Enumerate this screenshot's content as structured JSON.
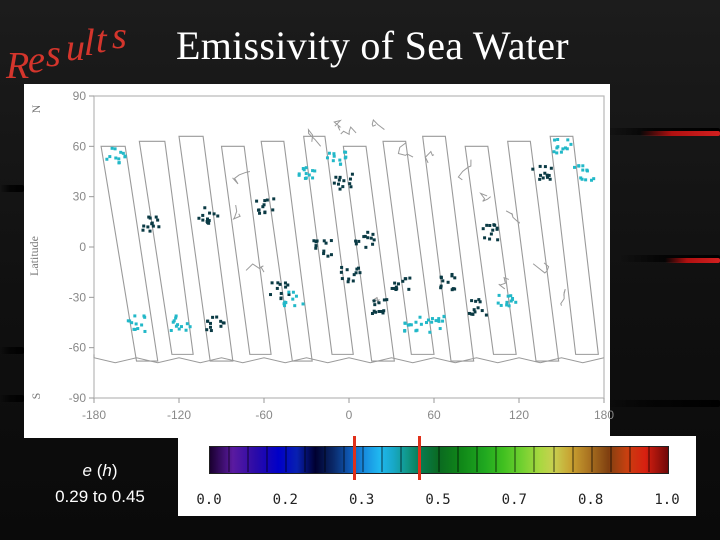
{
  "slide": {
    "section_word": "Results",
    "title": "Emissivity of Sea Water"
  },
  "map": {
    "y_axis_label": "Latitude",
    "north_label": "N",
    "south_label": "S",
    "lat_ticks": [
      "90",
      "60",
      "30",
      "0",
      "-30",
      "-60",
      "-90"
    ],
    "lon_ticks": [
      "-180",
      "-120",
      "-60",
      "0",
      "60",
      "120",
      "180"
    ],
    "colors": {
      "swath_outline": "#9a9a9a",
      "dark_teal": "#0a3a44",
      "cyan": "#22b8c8"
    }
  },
  "caption": {
    "symbol": "e",
    "open_paren": " (",
    "variable": "h",
    "close_paren": ")",
    "range": "0.29 to 0.45"
  },
  "colorbar": {
    "ticks": [
      "0.0",
      "0.2",
      "0.3",
      "0.5",
      "0.7",
      "0.8",
      "1.0"
    ],
    "marker_low": 0.29,
    "marker_high": 0.45,
    "marker_color": "#e0301a"
  }
}
